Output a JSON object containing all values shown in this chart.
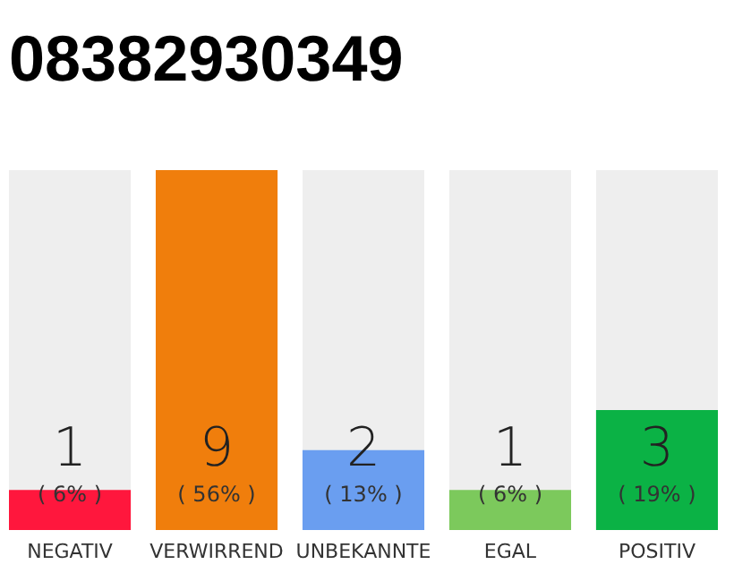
{
  "chart_data": {
    "type": "bar",
    "title": "08382930349",
    "categories": [
      "NEGATIV",
      "VERWIRREND",
      "UNBEKANNTE",
      "EGAL",
      "POSITIV"
    ],
    "values": [
      1,
      9,
      2,
      1,
      3
    ],
    "colors": [
      "#ff173d",
      "#f07e0c",
      "#6a9ef0",
      "#7cc95c",
      "#0bb245"
    ],
    "data_labels": true,
    "annotations": [
      "( 6% )",
      "( 56% )",
      "( 13% )",
      "( 6% )",
      "( 19% )"
    ],
    "grid": false
  }
}
